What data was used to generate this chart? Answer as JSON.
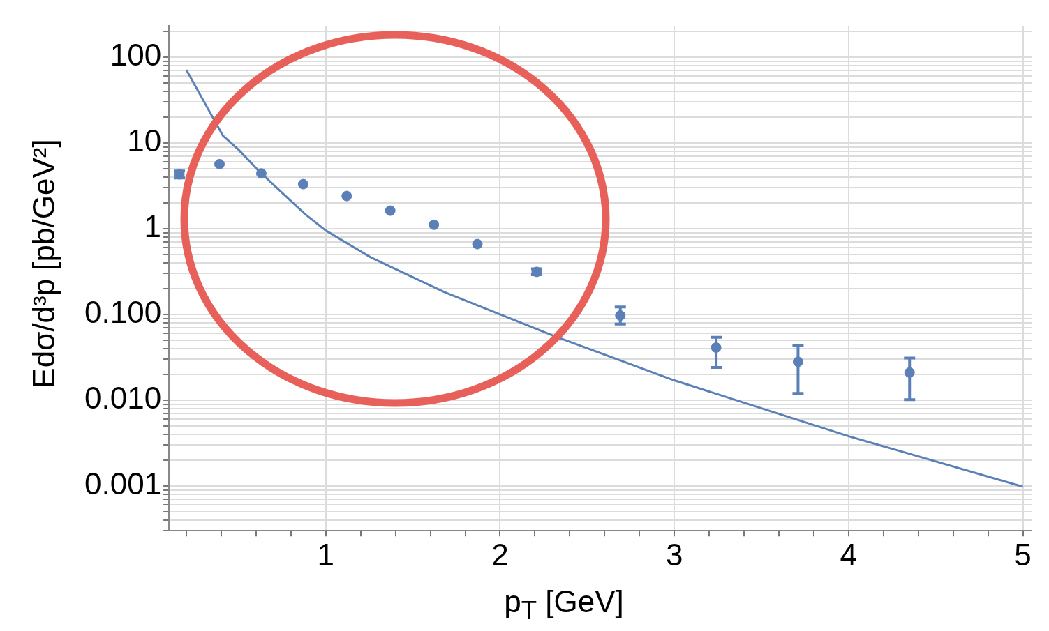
{
  "chart_data": {
    "type": "scatter",
    "xlabel": "p$_{T}$ [GeV]",
    "ylabel": "Edσ/d³p [pb/GeV²]",
    "log": "y",
    "grid": true,
    "legend": false,
    "xlim": [
      0.1,
      5.05
    ],
    "ylim": [
      0.0003,
      230
    ],
    "xticks": [
      {
        "value": 0.2,
        "label": null
      },
      {
        "value": 0.4,
        "label": null
      },
      {
        "value": 0.6,
        "label": null
      },
      {
        "value": 0.8,
        "label": null
      },
      1,
      {
        "value": 1.2,
        "label": null
      },
      {
        "value": 1.4,
        "label": null
      },
      {
        "value": 1.6,
        "label": null
      },
      {
        "value": 1.8,
        "label": null
      },
      2,
      {
        "value": 2.2,
        "label": null
      },
      {
        "value": 2.4,
        "label": null
      },
      {
        "value": 2.6,
        "label": null
      },
      {
        "value": 2.8,
        "label": null
      },
      3,
      {
        "value": 3.2,
        "label": null
      },
      {
        "value": 3.4,
        "label": null
      },
      {
        "value": 3.6,
        "label": null
      },
      {
        "value": 3.8,
        "label": null
      },
      4,
      {
        "value": 4.2,
        "label": null
      },
      {
        "value": 4.4,
        "label": null
      },
      {
        "value": 4.6,
        "label": null
      },
      {
        "value": 4.8,
        "label": null
      },
      5
    ],
    "yticks": [
      {
        "value": 0.0003,
        "label": null
      },
      {
        "value": 0.0004,
        "label": null
      },
      {
        "value": 0.0005,
        "label": null
      },
      {
        "value": 0.0006,
        "label": null
      },
      {
        "value": 0.0007,
        "label": null
      },
      {
        "value": 0.0008,
        "label": null
      },
      {
        "value": 0.0009,
        "label": null
      },
      {
        "value": 0.001,
        "label": "0.001"
      },
      {
        "value": 0.002,
        "label": null
      },
      {
        "value": 0.003,
        "label": null
      },
      {
        "value": 0.004,
        "label": null
      },
      {
        "value": 0.005,
        "label": null
      },
      {
        "value": 0.006,
        "label": null
      },
      {
        "value": 0.007,
        "label": null
      },
      {
        "value": 0.008,
        "label": null
      },
      {
        "value": 0.009,
        "label": null
      },
      {
        "value": 0.01,
        "label": "0.010"
      },
      {
        "value": 0.02,
        "label": null
      },
      {
        "value": 0.03,
        "label": null
      },
      {
        "value": 0.04,
        "label": null
      },
      {
        "value": 0.05,
        "label": null
      },
      {
        "value": 0.06,
        "label": null
      },
      {
        "value": 0.07,
        "label": null
      },
      {
        "value": 0.08,
        "label": null
      },
      {
        "value": 0.09,
        "label": null
      },
      {
        "value": 0.1,
        "label": "0.100"
      },
      {
        "value": 0.2,
        "label": null
      },
      {
        "value": 0.3,
        "label": null
      },
      {
        "value": 0.4,
        "label": null
      },
      {
        "value": 0.5,
        "label": null
      },
      {
        "value": 0.6,
        "label": null
      },
      {
        "value": 0.7,
        "label": null
      },
      {
        "value": 0.8,
        "label": null
      },
      {
        "value": 0.9,
        "label": null
      },
      1,
      {
        "value": 2,
        "label": null
      },
      {
        "value": 3,
        "label": null
      },
      {
        "value": 4,
        "label": null
      },
      {
        "value": 5,
        "label": null
      },
      {
        "value": 6,
        "label": null
      },
      {
        "value": 7,
        "label": null
      },
      {
        "value": 8,
        "label": null
      },
      {
        "value": 9,
        "label": null
      },
      10,
      {
        "value": 20,
        "label": null
      },
      {
        "value": 30,
        "label": null
      },
      {
        "value": 40,
        "label": null
      },
      {
        "value": 50,
        "label": null
      },
      {
        "value": 60,
        "label": null
      },
      {
        "value": 70,
        "label": null
      },
      {
        "value": 80,
        "label": null
      },
      {
        "value": 90,
        "label": null
      },
      100,
      {
        "value": 200,
        "label": null
      }
    ],
    "series": [
      {
        "type": "scatter",
        "marker": "circle",
        "color": "#5b80b8",
        "x": [
          0.16,
          0.39,
          0.63,
          0.87,
          1.12,
          1.37,
          1.62,
          1.87,
          2.21,
          2.69,
          3.24,
          3.71,
          4.35
        ],
        "values": [
          4.3,
          5.65,
          4.4,
          3.3,
          2.4,
          1.62,
          1.11,
          0.66,
          0.313,
          0.097,
          0.041,
          0.028,
          0.021
        ],
        "errors": [
          [
            3.9,
            4.7
          ],
          null,
          null,
          null,
          null,
          null,
          null,
          null,
          [
            0.29,
            0.34
          ],
          [
            0.077,
            0.122
          ],
          [
            0.024,
            0.054
          ],
          [
            0.012,
            0.043
          ],
          [
            0.0101,
            0.031
          ]
        ]
      },
      {
        "type": "line",
        "marker": "none",
        "line_style": "solid",
        "color": "#5b80b8",
        "x": [
          0.2,
          0.31,
          0.41,
          0.5,
          0.62,
          0.88,
          1.0,
          1.26,
          1.68,
          2.0,
          2.31,
          3.0,
          4.0,
          5.0
        ],
        "values": [
          71,
          28,
          12.1,
          8.3,
          4.6,
          1.48,
          0.95,
          0.46,
          0.182,
          0.1,
          0.056,
          0.017,
          0.0038,
          0.00098
        ]
      }
    ]
  }
}
